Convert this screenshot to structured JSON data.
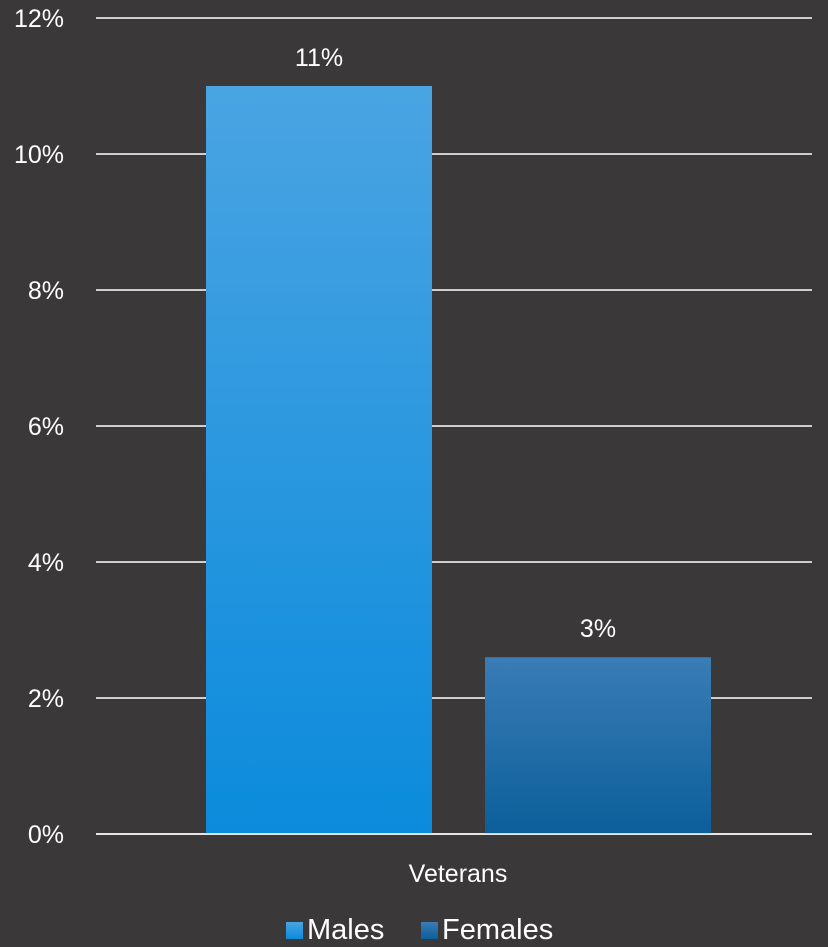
{
  "colors": {
    "background": "#3a3838",
    "males_top": "#4aa4e2",
    "males_bottom": "#0b8bdc",
    "females_top": "#3a7cb6",
    "females_bottom": "#0b5f9a"
  },
  "chart_data": {
    "type": "bar",
    "categories": [
      "Veterans"
    ],
    "series": [
      {
        "name": "Males",
        "values": [
          11
        ],
        "label": "11%"
      },
      {
        "name": "Females",
        "values": [
          2.6
        ],
        "label": "3%"
      }
    ],
    "title": "",
    "xlabel": "",
    "ylabel": "",
    "ylim": [
      0,
      12
    ],
    "yticks": [
      0,
      2,
      4,
      6,
      8,
      10,
      12
    ],
    "ytick_labels": [
      "0%",
      "2%",
      "4%",
      "6%",
      "8%",
      "10%",
      "12%"
    ],
    "grid": true,
    "legend": "bottom"
  }
}
